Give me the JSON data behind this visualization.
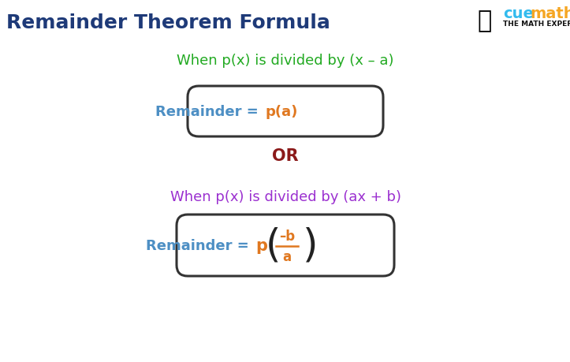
{
  "title": "Remainder Theorem Formula",
  "title_color": "#1e3a78",
  "title_fontsize": 18,
  "bg_color": "#ffffff",
  "green_text": "When p(x) is divided by (x – a)",
  "green_color": "#22aa22",
  "purple_text": "When p(x) is divided by (ax + b)",
  "purple_color": "#9b30d0",
  "or_text": "OR",
  "or_color": "#8b1a1a",
  "box_blue": "#4d8fc4",
  "box_orange": "#e07820",
  "box_border_color": "#333333",
  "cuemath_cue_color": "#33bbee",
  "cuemath_math_color": "#f5a623",
  "cuemath_sub": "THE MATH EXPERT",
  "fig_width": 7.23,
  "fig_height": 4.6,
  "dpi": 100
}
